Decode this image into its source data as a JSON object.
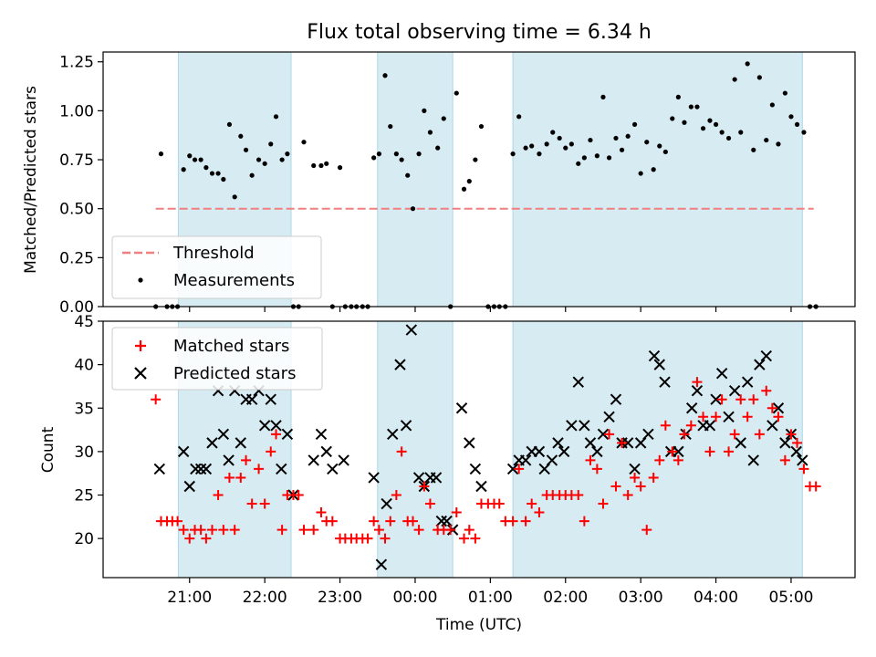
{
  "chart_data": [
    {
      "type": "scatter",
      "title": "Flux total observing time = 6.34 h",
      "xlabel": "",
      "ylabel": "Matched/Predicted stars",
      "ylim": [
        0,
        1.3
      ],
      "y_ticks": [
        "0.00",
        "0.25",
        "0.50",
        "0.75",
        "1.00",
        "1.25"
      ],
      "threshold": {
        "name": "Threshold",
        "y": 0.5,
        "x_start": 20.55,
        "x_end": 5.3,
        "color": "#f08080"
      },
      "legend": [
        "Threshold",
        "Measurements"
      ],
      "shaded_intervals_utc_hours": [
        [
          20.85,
          22.35
        ],
        [
          23.5,
          24.5
        ],
        [
          25.3,
          29.15
        ]
      ],
      "series": [
        {
          "name": "Measurements",
          "color": "#000000",
          "x": [
            20.55,
            20.62,
            20.7,
            20.77,
            20.84,
            20.92,
            21.0,
            21.07,
            21.15,
            21.22,
            21.3,
            21.38,
            21.45,
            21.53,
            21.6,
            21.68,
            21.75,
            21.83,
            21.92,
            22.0,
            22.08,
            22.15,
            22.23,
            22.3,
            22.38,
            22.45,
            22.52,
            22.65,
            22.75,
            22.82,
            22.9,
            23.0,
            23.07,
            23.15,
            23.22,
            23.3,
            23.37,
            23.45,
            23.52,
            23.6,
            23.67,
            23.75,
            23.82,
            23.9,
            23.97,
            24.05,
            24.12,
            24.2,
            24.3,
            24.38,
            24.47,
            24.55,
            24.65,
            24.72,
            24.8,
            24.88,
            24.97,
            25.05,
            25.12,
            25.2,
            25.3,
            25.38,
            25.47,
            25.55,
            25.65,
            25.75,
            25.83,
            25.92,
            26.0,
            26.08,
            26.17,
            26.25,
            26.33,
            26.42,
            26.5,
            26.58,
            26.67,
            26.75,
            26.83,
            26.92,
            27.0,
            27.08,
            27.17,
            27.25,
            27.33,
            27.42,
            27.5,
            27.58,
            27.67,
            27.75,
            27.83,
            27.92,
            28.0,
            28.08,
            28.17,
            28.25,
            28.33,
            28.42,
            28.5,
            28.58,
            28.67,
            28.75,
            28.83,
            28.92,
            29.0,
            29.08,
            29.17,
            29.25,
            29.33
          ],
          "y": [
            0.0,
            0.78,
            0.0,
            0.0,
            0.0,
            0.7,
            0.77,
            0.75,
            0.75,
            0.71,
            0.68,
            0.68,
            0.65,
            0.93,
            0.56,
            0.87,
            0.8,
            0.67,
            0.75,
            0.73,
            0.83,
            0.97,
            0.75,
            0.78,
            0.0,
            0.0,
            0.84,
            0.72,
            0.72,
            0.73,
            0.0,
            0.71,
            0.0,
            0.0,
            0.0,
            0.0,
            0.0,
            0.76,
            0.78,
            1.18,
            0.92,
            0.78,
            0.75,
            0.67,
            0.5,
            0.78,
            1.0,
            0.89,
            0.81,
            0.96,
            0.0,
            1.09,
            0.6,
            0.64,
            0.75,
            0.92,
            0.0,
            0.0,
            0.0,
            0.0,
            0.78,
            0.97,
            0.81,
            0.82,
            0.78,
            0.83,
            0.89,
            0.86,
            0.81,
            0.83,
            0.73,
            0.76,
            0.85,
            0.77,
            1.07,
            0.76,
            0.86,
            0.8,
            0.87,
            0.93,
            0.68,
            0.84,
            0.7,
            0.82,
            0.79,
            0.96,
            1.07,
            0.94,
            1.02,
            1.02,
            0.91,
            0.95,
            0.93,
            0.89,
            0.86,
            1.16,
            0.89,
            1.24,
            0.8,
            1.17,
            0.85,
            1.03,
            0.83,
            1.09,
            0.97,
            0.93,
            0.89,
            0.0,
            0.0
          ]
        }
      ]
    },
    {
      "type": "scatter",
      "title": "",
      "xlabel": "Time (UTC)",
      "ylabel": "Count",
      "ylim": [
        15.5,
        45
      ],
      "y_ticks": [
        "20",
        "25",
        "30",
        "35",
        "40",
        "45"
      ],
      "x_tick_labels": [
        "21:00",
        "22:00",
        "23:00",
        "00:00",
        "01:00",
        "02:00",
        "03:00",
        "04:00",
        "05:00"
      ],
      "legend": [
        "Matched stars",
        "Predicted stars"
      ],
      "shaded_intervals_utc_hours": [
        [
          20.85,
          22.35
        ],
        [
          23.5,
          24.5
        ],
        [
          25.3,
          29.15
        ]
      ],
      "series": [
        {
          "name": "Matched stars",
          "marker": "plus",
          "color": "#ff0000",
          "x": [
            20.55,
            20.62,
            20.7,
            20.77,
            20.84,
            20.92,
            21.0,
            21.07,
            21.15,
            21.22,
            21.3,
            21.38,
            21.45,
            21.53,
            21.6,
            21.68,
            21.75,
            21.83,
            21.92,
            22.0,
            22.08,
            22.15,
            22.23,
            22.3,
            22.38,
            22.45,
            22.52,
            22.65,
            22.75,
            22.82,
            22.9,
            23.0,
            23.07,
            23.15,
            23.22,
            23.3,
            23.37,
            23.45,
            23.52,
            23.6,
            23.67,
            23.75,
            23.82,
            23.9,
            23.97,
            24.05,
            24.12,
            24.2,
            24.3,
            24.38,
            24.47,
            24.55,
            24.65,
            24.72,
            24.8,
            24.88,
            24.97,
            25.05,
            25.12,
            25.2,
            25.3,
            25.38,
            25.47,
            25.55,
            25.65,
            25.75,
            25.83,
            25.92,
            26.0,
            26.08,
            26.17,
            26.25,
            26.33,
            26.42,
            26.5,
            26.58,
            26.67,
            26.75,
            26.83,
            26.92,
            27.0,
            27.08,
            27.17,
            27.25,
            27.33,
            27.42,
            27.5,
            27.58,
            27.67,
            27.75,
            27.83,
            27.92,
            28.0,
            28.08,
            28.17,
            28.25,
            28.33,
            28.42,
            28.5,
            28.58,
            28.67,
            28.75,
            28.83,
            28.92,
            29.0,
            29.08,
            29.17,
            29.25,
            29.33
          ],
          "y": [
            36,
            22,
            22,
            22,
            22,
            21,
            20,
            21,
            21,
            20,
            21,
            25,
            21,
            27,
            21,
            27,
            29,
            24,
            28,
            24,
            30,
            32,
            21,
            25,
            25,
            25,
            21,
            21,
            23,
            22,
            22,
            20,
            20,
            20,
            20,
            20,
            20,
            22,
            21,
            20,
            22,
            25,
            30,
            22,
            22,
            21,
            26,
            24,
            21,
            21,
            21,
            23,
            20,
            21,
            20,
            24,
            24,
            24,
            24,
            22,
            22,
            28,
            22,
            24,
            23,
            25,
            25,
            25,
            25,
            25,
            25,
            22,
            29,
            28,
            24,
            32,
            26,
            31,
            25,
            27,
            26,
            21,
            27,
            29,
            33,
            30,
            29,
            32,
            33,
            38,
            34,
            30,
            34,
            36,
            30,
            32,
            36,
            34,
            36,
            32,
            37,
            35,
            34,
            29,
            32,
            31,
            28,
            26,
            26
          ]
        },
        {
          "name": "Predicted stars",
          "marker": "x",
          "color": "#000000",
          "x": [
            20.6,
            20.92,
            21.0,
            21.08,
            21.15,
            21.22,
            21.3,
            21.38,
            21.45,
            21.52,
            21.6,
            21.68,
            21.75,
            21.83,
            21.92,
            22.0,
            22.08,
            22.15,
            22.22,
            22.3,
            22.38,
            22.65,
            22.75,
            22.82,
            22.9,
            23.05,
            23.45,
            23.55,
            23.62,
            23.7,
            23.8,
            23.88,
            23.95,
            24.05,
            24.12,
            24.2,
            24.28,
            24.35,
            24.42,
            24.5,
            24.62,
            24.72,
            24.8,
            24.88,
            25.3,
            25.38,
            25.47,
            25.55,
            25.65,
            25.72,
            25.82,
            25.9,
            25.98,
            26.08,
            26.17,
            26.25,
            26.33,
            26.42,
            26.5,
            26.58,
            26.67,
            26.75,
            26.83,
            26.92,
            27.0,
            27.1,
            27.18,
            27.25,
            27.32,
            27.4,
            27.5,
            27.6,
            27.68,
            27.75,
            27.83,
            27.92,
            28.0,
            28.08,
            28.17,
            28.25,
            28.33,
            28.42,
            28.5,
            28.58,
            28.67,
            28.75,
            28.83,
            28.92,
            29.0,
            29.07,
            29.15
          ],
          "y": [
            28,
            30,
            26,
            28,
            28,
            28,
            31,
            37,
            32,
            29,
            37,
            31,
            36,
            36,
            37,
            33,
            36,
            33,
            28,
            32,
            25,
            29,
            32,
            30,
            28,
            29,
            27,
            17,
            24,
            32,
            40,
            33,
            44,
            27,
            26,
            27,
            27,
            22,
            22,
            21,
            35,
            31,
            28,
            26,
            28,
            29,
            29,
            30,
            30,
            28,
            29,
            31,
            30,
            33,
            38,
            33,
            31,
            30,
            32,
            34,
            36,
            31,
            31,
            28,
            31,
            32,
            41,
            40,
            38,
            30,
            30,
            32,
            35,
            37,
            33,
            33,
            36,
            39,
            34,
            37,
            31,
            38,
            29,
            40,
            41,
            33,
            35,
            31,
            32,
            30,
            29
          ]
        }
      ]
    }
  ]
}
